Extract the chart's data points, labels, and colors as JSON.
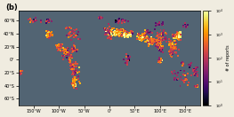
{
  "title_label": "(b)",
  "colorbar_label": "# of reports",
  "cmap": "inferno",
  "vmin": 0,
  "vmax": 4,
  "background_color": "#526473",
  "land_color": "#f5f0e8",
  "map_xlim": [
    -180,
    180
  ],
  "map_ylim": [
    -70,
    75
  ],
  "xticks": [
    -150,
    -100,
    -50,
    0,
    50,
    100,
    150
  ],
  "xtick_labels": [
    "150°W",
    "100°W",
    "50°W",
    "0°",
    "50°E",
    "100°E",
    "150°E"
  ],
  "yticks": [
    -60,
    -40,
    -20,
    0,
    20,
    40,
    60
  ],
  "ytick_labels": [
    "60°S",
    "40°S",
    "20°S",
    "0°",
    "20°N",
    "40°N",
    "60°N"
  ],
  "figsize": [
    2.63,
    1.32
  ],
  "dpi": 100,
  "regions": [
    [
      15,
      42,
      25,
      8,
      3.5,
      80
    ],
    [
      35,
      37,
      10,
      5,
      3.8,
      60
    ],
    [
      65,
      35,
      15,
      10,
      3.2,
      50
    ],
    [
      80,
      28,
      12,
      8,
      3.0,
      40
    ],
    [
      100,
      25,
      10,
      15,
      2.8,
      40
    ],
    [
      125,
      15,
      15,
      20,
      2.5,
      50
    ],
    [
      135,
      35,
      10,
      10,
      3.0,
      40
    ],
    [
      -70,
      -20,
      15,
      30,
      2.5,
      60
    ],
    [
      -85,
      10,
      15,
      15,
      2.2,
      40
    ],
    [
      -120,
      38,
      10,
      8,
      2.8,
      30
    ],
    [
      -75,
      40,
      20,
      15,
      2.2,
      40
    ],
    [
      150,
      -30,
      10,
      20,
      2.0,
      20
    ],
    [
      170,
      -20,
      10,
      15,
      1.8,
      20
    ],
    [
      35,
      0,
      10,
      15,
      1.5,
      20
    ],
    [
      -120,
      60,
      10,
      5,
      1.5,
      15
    ],
    [
      30,
      60,
      15,
      5,
      1.5,
      15
    ],
    [
      100,
      55,
      15,
      5,
      1.2,
      15
    ],
    [
      -70,
      15,
      8,
      5,
      2.0,
      20
    ],
    [
      43,
      42,
      8,
      4,
      2.5,
      20
    ],
    [
      25,
      45,
      8,
      5,
      2.8,
      20
    ],
    [
      13,
      42,
      5,
      6,
      3.5,
      30
    ],
    [
      22,
      38,
      5,
      4,
      3.0,
      20
    ],
    [
      -70,
      -35,
      5,
      15,
      2.8,
      30
    ],
    [
      2,
      34,
      8,
      4,
      2.2,
      20
    ],
    [
      135,
      -25,
      20,
      15,
      1.5,
      15
    ],
    [
      172,
      -41,
      5,
      5,
      2.0,
      15
    ],
    [
      -18,
      65,
      5,
      3,
      1.8,
      10
    ],
    [
      -150,
      60,
      15,
      5,
      2.0,
      20
    ],
    [
      -100,
      20,
      10,
      8,
      2.5,
      30
    ],
    [
      140,
      38,
      5,
      8,
      3.5,
      30
    ],
    [
      100,
      0,
      8,
      10,
      2.5,
      25
    ],
    [
      122,
      12,
      5,
      8,
      2.2,
      20
    ],
    [
      121,
      24,
      3,
      3,
      2.8,
      15
    ],
    [
      88,
      28,
      12,
      5,
      2.5,
      25
    ],
    [
      78,
      43,
      10,
      5,
      1.5,
      10
    ],
    [
      -75,
      5,
      5,
      5,
      2.2,
      15
    ],
    [
      -74,
      -10,
      5,
      10,
      2.2,
      20
    ],
    [
      -68,
      -18,
      5,
      5,
      1.8,
      10
    ],
    [
      -78,
      -2,
      4,
      4,
      2.5,
      15
    ],
    [
      -5,
      45,
      10,
      10,
      1.8,
      20
    ],
    [
      15,
      60,
      10,
      5,
      1.2,
      10
    ],
    [
      150,
      52,
      10,
      5,
      1.5,
      10
    ],
    [
      167,
      -17,
      3,
      5,
      2.0,
      10
    ],
    [
      -175,
      -20,
      3,
      5,
      1.8,
      8
    ],
    [
      160,
      -9,
      5,
      5,
      1.8,
      10
    ],
    [
      145,
      -6,
      5,
      5,
      1.8,
      10
    ],
    [
      96,
      22,
      5,
      8,
      2.0,
      15
    ],
    [
      102,
      15,
      5,
      8,
      1.5,
      10
    ],
    [
      128,
      37,
      3,
      3,
      2.0,
      10
    ],
    [
      105,
      35,
      20,
      15,
      2.0,
      30
    ],
    [
      -88,
      14,
      5,
      4,
      2.5,
      20
    ],
    [
      -70,
      19,
      3,
      3,
      2.2,
      10
    ]
  ]
}
